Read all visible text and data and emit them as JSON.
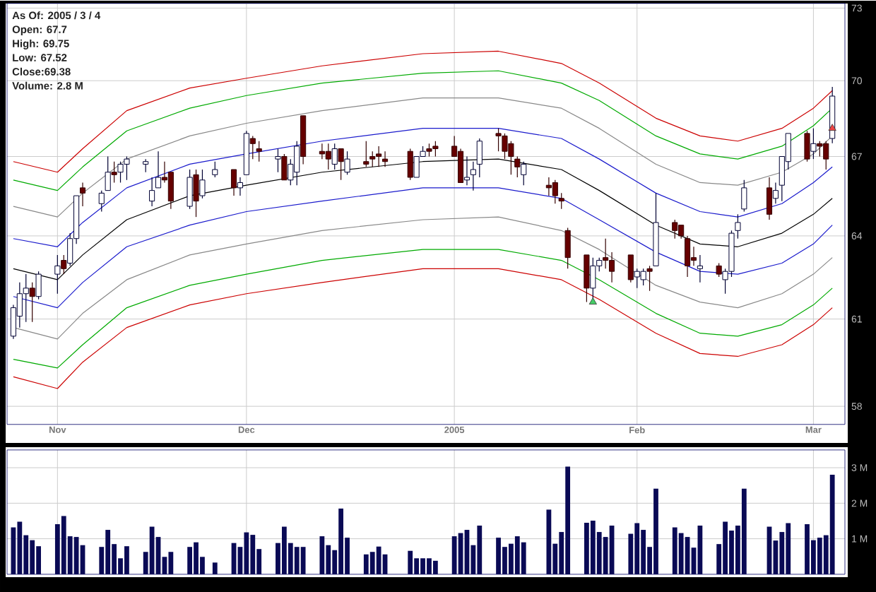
{
  "chart_data": [
    {
      "type": "candlestick",
      "annotations": [
        "As Of: 2005 / 3 / 4",
        "Open: 67.7",
        "High: 69.75",
        "Low: 67.52",
        "Close:69.38",
        "Volume: 2.8 M"
      ],
      "x": [
        "2004-10-25",
        "2004-10-26",
        "2004-10-27",
        "2004-10-28",
        "2004-10-29",
        "2004-11-01",
        "2004-11-02",
        "2004-11-03",
        "2004-11-04",
        "2004-11-05",
        "2004-11-08",
        "2004-11-09",
        "2004-11-10",
        "2004-11-11",
        "2004-11-12",
        "2004-11-15",
        "2004-11-16",
        "2004-11-17",
        "2004-11-18",
        "2004-11-19",
        "2004-11-22",
        "2004-11-23",
        "2004-11-24",
        "2004-11-26",
        "2004-11-29",
        "2004-11-30",
        "2004-12-01",
        "2004-12-02",
        "2004-12-03",
        "2004-12-06",
        "2004-12-07",
        "2004-12-08",
        "2004-12-09",
        "2004-12-10",
        "2004-12-13",
        "2004-12-14",
        "2004-12-15",
        "2004-12-16",
        "2004-12-17",
        "2004-12-20",
        "2004-12-21",
        "2004-12-22",
        "2004-12-23",
        "2004-12-27",
        "2004-12-28",
        "2004-12-29",
        "2004-12-30",
        "2004-12-31",
        "2005-01-03",
        "2005-01-04",
        "2005-01-05",
        "2005-01-06",
        "2005-01-07",
        "2005-01-10",
        "2005-01-11",
        "2005-01-12",
        "2005-01-13",
        "2005-01-14",
        "2005-01-18",
        "2005-01-19",
        "2005-01-20",
        "2005-01-21",
        "2005-01-24",
        "2005-01-25",
        "2005-01-26",
        "2005-01-27",
        "2005-01-28",
        "2005-01-31",
        "2005-02-01",
        "2005-02-02",
        "2005-02-03",
        "2005-02-04",
        "2005-02-07",
        "2005-02-08",
        "2005-02-09",
        "2005-02-10",
        "2005-02-11",
        "2005-02-14",
        "2005-02-15",
        "2005-02-16",
        "2005-02-17",
        "2005-02-18",
        "2005-02-22",
        "2005-02-23",
        "2005-02-24",
        "2005-02-25",
        "2005-02-28",
        "2005-03-01",
        "2005-03-02",
        "2005-03-03",
        "2005-03-04"
      ],
      "ohlc": [
        [
          60.4,
          61.5,
          60.3,
          61.4
        ],
        [
          61.1,
          62.3,
          60.7,
          61.9
        ],
        [
          61.9,
          62.6,
          60.9,
          62.1
        ],
        [
          62.1,
          62.3,
          60.9,
          61.8
        ],
        [
          61.8,
          62.7,
          61.7,
          62.6
        ],
        [
          62.6,
          63.3,
          61.9,
          62.9
        ],
        [
          63.1,
          63.3,
          62.6,
          62.8
        ],
        [
          63.0,
          64.1,
          62.9,
          63.9
        ],
        [
          63.9,
          65.5,
          63.7,
          65.5
        ],
        [
          65.8,
          66.0,
          65.1,
          65.6
        ],
        [
          65.2,
          65.7,
          64.9,
          65.6
        ],
        [
          65.7,
          67.0,
          65.7,
          66.4
        ],
        [
          66.4,
          66.8,
          66.0,
          66.3
        ],
        [
          66.4,
          66.8,
          66.0,
          66.7
        ],
        [
          66.7,
          67.0,
          66.1,
          66.9
        ],
        [
          66.7,
          66.9,
          66.4,
          66.8
        ],
        [
          65.3,
          66.2,
          65.1,
          65.7
        ],
        [
          65.8,
          67.2,
          65.8,
          66.2
        ],
        [
          66.2,
          66.8,
          66.0,
          66.1
        ],
        [
          66.4,
          66.4,
          65.0,
          65.3
        ],
        [
          65.1,
          66.5,
          65.0,
          66.2
        ],
        [
          66.3,
          66.5,
          64.7,
          65.3
        ],
        [
          65.5,
          66.5,
          65.4,
          66.1
        ],
        [
          66.3,
          66.8,
          66.2,
          66.5
        ],
        [
          66.5,
          66.5,
          65.5,
          65.8
        ],
        [
          65.8,
          66.2,
          65.5,
          66.0
        ],
        [
          66.3,
          68.0,
          66.3,
          67.9
        ],
        [
          67.7,
          67.8,
          66.9,
          67.5
        ],
        [
          67.3,
          67.6,
          66.8,
          67.2
        ],
        [
          66.9,
          67.3,
          66.4,
          67.0
        ],
        [
          67.0,
          67.1,
          66.1,
          66.1
        ],
        [
          66.1,
          66.9,
          65.9,
          66.7
        ],
        [
          66.4,
          67.6,
          65.9,
          67.4
        ],
        [
          68.6,
          68.6,
          66.7,
          67.0
        ],
        [
          67.2,
          67.5,
          66.9,
          67.1
        ],
        [
          67.2,
          67.5,
          66.5,
          66.9
        ],
        [
          66.7,
          67.5,
          66.5,
          67.3
        ],
        [
          67.3,
          67.3,
          66.1,
          66.8
        ],
        [
          66.4,
          67.2,
          66.3,
          66.9
        ],
        [
          66.8,
          67.6,
          66.6,
          66.7
        ],
        [
          67.0,
          67.2,
          66.6,
          66.9
        ],
        [
          67.1,
          67.4,
          66.6,
          67.0
        ],
        [
          66.9,
          67.2,
          66.6,
          66.8
        ],
        [
          67.2,
          67.3,
          66.1,
          66.2
        ],
        [
          66.2,
          67.0,
          66.2,
          67.0
        ],
        [
          67.0,
          67.4,
          67.0,
          67.2
        ],
        [
          67.3,
          67.5,
          67.0,
          67.2
        ],
        [
          67.4,
          67.6,
          67.0,
          67.3
        ],
        [
          67.4,
          67.8,
          67.0,
          67.0
        ],
        [
          67.2,
          67.3,
          66.0,
          66.0
        ],
        [
          66.1,
          67.0,
          65.9,
          66.2
        ],
        [
          66.3,
          66.8,
          65.7,
          66.5
        ],
        [
          66.7,
          67.7,
          66.2,
          67.6
        ],
        [
          67.9,
          68.1,
          67.2,
          67.8
        ],
        [
          67.8,
          67.9,
          66.9,
          67.2
        ],
        [
          67.5,
          67.6,
          66.3,
          67.0
        ],
        [
          66.9,
          67.0,
          66.2,
          66.6
        ],
        [
          66.3,
          66.8,
          65.9,
          66.7
        ],
        [
          65.9,
          66.2,
          65.5,
          65.8
        ],
        [
          66.0,
          66.1,
          65.2,
          65.5
        ],
        [
          65.4,
          65.6,
          65.0,
          65.3
        ],
        [
          64.2,
          64.3,
          62.8,
          63.2
        ],
        [
          63.3,
          63.3,
          61.6,
          62.1
        ],
        [
          62.1,
          63.2,
          61.7,
          62.9
        ],
        [
          62.9,
          63.2,
          62.7,
          63.1
        ],
        [
          63.2,
          63.9,
          62.8,
          63.1
        ],
        [
          63.1,
          63.4,
          62.3,
          62.7
        ],
        [
          63.3,
          63.3,
          62.3,
          62.4
        ],
        [
          62.5,
          62.8,
          62.1,
          62.7
        ],
        [
          62.4,
          62.8,
          62.2,
          62.7
        ],
        [
          62.8,
          62.9,
          62.0,
          62.7
        ],
        [
          62.9,
          65.6,
          62.9,
          64.5
        ],
        [
          64.5,
          64.6,
          63.9,
          64.2
        ],
        [
          64.4,
          64.4,
          63.9,
          64.0
        ],
        [
          63.9,
          64.0,
          62.5,
          62.9
        ],
        [
          63.2,
          63.6,
          62.9,
          63.1
        ],
        [
          62.8,
          63.3,
          62.3,
          62.9
        ],
        [
          62.9,
          63.0,
          62.5,
          62.6
        ],
        [
          62.4,
          62.8,
          61.9,
          62.7
        ],
        [
          62.7,
          64.2,
          62.5,
          64.1
        ],
        [
          64.2,
          64.8,
          63.9,
          64.5
        ],
        [
          65.0,
          66.1,
          64.9,
          65.8
        ],
        [
          65.8,
          66.2,
          64.6,
          64.8
        ],
        [
          65.4,
          66.0,
          65.2,
          65.7
        ],
        [
          65.9,
          67.0,
          65.3,
          67.0
        ],
        [
          66.8,
          67.9,
          66.5,
          67.9
        ],
        [
          67.9,
          68.0,
          66.8,
          66.9
        ],
        [
          67.2,
          68.1,
          66.9,
          67.5
        ],
        [
          67.5,
          67.6,
          67.0,
          67.4
        ],
        [
          67.5,
          67.6,
          66.5,
          66.9
        ],
        [
          67.7,
          69.75,
          67.52,
          69.38
        ]
      ],
      "series": [
        {
          "type": "line",
          "color": "#cc0000",
          "x": [
            "2004-10-25",
            "2004-11-01",
            "2004-11-05",
            "2004-11-12",
            "2004-11-22",
            "2004-12-01",
            "2004-12-13",
            "2004-12-29",
            "2005-01-10",
            "2005-01-20",
            "2005-01-26",
            "2005-02-04",
            "2005-02-11",
            "2005-02-17",
            "2005-02-24",
            "2005-03-01",
            "2005-03-04"
          ],
          "values": [
            66.8,
            66.4,
            67.3,
            68.8,
            69.7,
            70.1,
            70.6,
            71.1,
            71.2,
            70.7,
            69.9,
            68.5,
            67.8,
            67.6,
            68.1,
            68.9,
            69.6
          ]
        },
        {
          "type": "line",
          "color": "#00aa00",
          "x": [
            "2004-10-25",
            "2004-11-01",
            "2004-11-05",
            "2004-11-12",
            "2004-11-22",
            "2004-12-01",
            "2004-12-13",
            "2004-12-29",
            "2005-01-10",
            "2005-01-20",
            "2005-01-26",
            "2005-02-04",
            "2005-02-11",
            "2005-02-17",
            "2005-02-24",
            "2005-03-01",
            "2005-03-04"
          ],
          "values": [
            66.1,
            65.7,
            66.6,
            68.0,
            68.9,
            69.4,
            69.9,
            70.3,
            70.4,
            69.9,
            69.2,
            67.8,
            67.1,
            66.9,
            67.4,
            68.2,
            68.9
          ]
        },
        {
          "type": "line",
          "color": "#888888",
          "x": [
            "2004-10-25",
            "2004-11-01",
            "2004-11-05",
            "2004-11-12",
            "2004-11-22",
            "2004-12-01",
            "2004-12-13",
            "2004-12-29",
            "2005-01-10",
            "2005-01-20",
            "2005-01-26",
            "2005-02-04",
            "2005-02-11",
            "2005-02-17",
            "2005-02-24",
            "2005-03-01",
            "2005-03-04"
          ],
          "values": [
            65.1,
            64.7,
            65.6,
            66.9,
            67.8,
            68.3,
            68.8,
            69.3,
            69.3,
            68.9,
            68.1,
            66.7,
            66.0,
            65.9,
            66.4,
            67.1,
            67.8
          ]
        },
        {
          "type": "line",
          "color": "#1a1acc",
          "x": [
            "2004-10-25",
            "2004-11-01",
            "2004-11-05",
            "2004-11-12",
            "2004-11-22",
            "2004-12-01",
            "2004-12-13",
            "2004-12-29",
            "2005-01-10",
            "2005-01-20",
            "2005-01-26",
            "2005-02-04",
            "2005-02-11",
            "2005-02-17",
            "2005-02-24",
            "2005-03-01",
            "2005-03-04"
          ],
          "values": [
            63.9,
            63.6,
            64.5,
            65.8,
            66.7,
            67.1,
            67.6,
            68.1,
            68.1,
            67.7,
            66.9,
            65.6,
            64.9,
            64.7,
            65.2,
            66.0,
            66.6
          ]
        },
        {
          "type": "line",
          "color": "#000000",
          "x": [
            "2004-10-25",
            "2004-11-01",
            "2004-11-05",
            "2004-11-12",
            "2004-11-22",
            "2004-12-01",
            "2004-12-13",
            "2004-12-29",
            "2005-01-10",
            "2005-01-20",
            "2005-01-26",
            "2005-02-04",
            "2005-02-11",
            "2005-02-17",
            "2005-02-24",
            "2005-03-01",
            "2005-03-04"
          ],
          "values": [
            62.8,
            62.4,
            63.3,
            64.6,
            65.5,
            65.9,
            66.4,
            66.8,
            66.9,
            66.5,
            65.7,
            64.4,
            63.7,
            63.6,
            64.1,
            64.8,
            65.4
          ]
        },
        {
          "type": "line",
          "color": "#1a1acc",
          "x": [
            "2004-10-25",
            "2004-11-01",
            "2004-11-05",
            "2004-11-12",
            "2004-11-22",
            "2004-12-01",
            "2004-12-13",
            "2004-12-29",
            "2005-01-10",
            "2005-01-20",
            "2005-01-26",
            "2005-02-04",
            "2005-02-11",
            "2005-02-17",
            "2005-02-24",
            "2005-03-01",
            "2005-03-04"
          ],
          "values": [
            61.8,
            61.4,
            62.3,
            63.6,
            64.4,
            64.9,
            65.3,
            65.8,
            65.8,
            65.4,
            64.6,
            63.4,
            62.7,
            62.6,
            63.0,
            63.7,
            64.4
          ]
        },
        {
          "type": "line",
          "color": "#888888",
          "x": [
            "2004-10-25",
            "2004-11-01",
            "2004-11-05",
            "2004-11-12",
            "2004-11-22",
            "2004-12-01",
            "2004-12-13",
            "2004-12-29",
            "2005-01-10",
            "2005-01-20",
            "2005-01-26",
            "2005-02-04",
            "2005-02-11",
            "2005-02-17",
            "2005-02-24",
            "2005-03-01",
            "2005-03-04"
          ],
          "values": [
            60.7,
            60.3,
            61.2,
            62.4,
            63.3,
            63.7,
            64.2,
            64.6,
            64.7,
            64.2,
            63.5,
            62.2,
            61.6,
            61.4,
            61.9,
            62.6,
            63.2
          ]
        },
        {
          "type": "line",
          "color": "#00aa00",
          "x": [
            "2004-10-25",
            "2004-11-01",
            "2004-11-05",
            "2004-11-12",
            "2004-11-22",
            "2004-12-01",
            "2004-12-13",
            "2004-12-29",
            "2005-01-10",
            "2005-01-20",
            "2005-01-26",
            "2005-02-04",
            "2005-02-11",
            "2005-02-17",
            "2005-02-24",
            "2005-03-01",
            "2005-03-04"
          ],
          "values": [
            59.6,
            59.3,
            60.1,
            61.4,
            62.2,
            62.6,
            63.1,
            63.5,
            63.5,
            63.1,
            62.4,
            61.2,
            60.5,
            60.4,
            60.8,
            61.5,
            62.1
          ]
        },
        {
          "type": "line",
          "color": "#cc0000",
          "x": [
            "2004-10-25",
            "2004-11-01",
            "2004-11-05",
            "2004-11-12",
            "2004-11-22",
            "2004-12-01",
            "2004-12-13",
            "2004-12-29",
            "2005-01-10",
            "2005-01-20",
            "2005-01-26",
            "2005-02-04",
            "2005-02-11",
            "2005-02-17",
            "2005-02-24",
            "2005-03-01",
            "2005-03-04"
          ],
          "values": [
            59.0,
            58.6,
            59.5,
            60.7,
            61.5,
            61.9,
            62.3,
            62.8,
            62.8,
            62.4,
            61.7,
            60.5,
            59.8,
            59.7,
            60.1,
            60.8,
            61.4
          ]
        },
        {
          "type": "scatter",
          "color": "#44cc66",
          "marker": "triangle",
          "x": [
            "2005-01-25"
          ],
          "values": [
            61.6
          ]
        },
        {
          "type": "scatter",
          "color": "#ee4444",
          "marker": "triangle",
          "x": [
            "2005-03-04"
          ],
          "values": [
            68.1
          ]
        }
      ],
      "xlim": [
        "2004-10-24",
        "2005-03-06"
      ],
      "xticks": [
        {
          "value": "2004-11-01",
          "label": "Nov"
        },
        {
          "value": "2004-12-01",
          "label": "Dec"
        },
        {
          "value": "2005-01-03",
          "label": "2005"
        },
        {
          "value": "2005-02-01",
          "label": "Feb"
        },
        {
          "value": "2005-03-01",
          "label": "Mar"
        }
      ],
      "ylim": [
        57.4,
        73.2
      ],
      "yticks": [
        58,
        61,
        64,
        67,
        70,
        73
      ],
      "log": "y",
      "grid": true
    },
    {
      "type": "bar",
      "color": "#0a0a55",
      "x": [
        "2004-10-25",
        "2004-10-26",
        "2004-10-27",
        "2004-10-28",
        "2004-10-29",
        "2004-11-01",
        "2004-11-02",
        "2004-11-03",
        "2004-11-04",
        "2004-11-05",
        "2004-11-08",
        "2004-11-09",
        "2004-11-10",
        "2004-11-11",
        "2004-11-12",
        "2004-11-15",
        "2004-11-16",
        "2004-11-17",
        "2004-11-18",
        "2004-11-19",
        "2004-11-22",
        "2004-11-23",
        "2004-11-24",
        "2004-11-26",
        "2004-11-29",
        "2004-11-30",
        "2004-12-01",
        "2004-12-02",
        "2004-12-03",
        "2004-12-06",
        "2004-12-07",
        "2004-12-08",
        "2004-12-09",
        "2004-12-10",
        "2004-12-13",
        "2004-12-14",
        "2004-12-15",
        "2004-12-16",
        "2004-12-17",
        "2004-12-20",
        "2004-12-21",
        "2004-12-22",
        "2004-12-23",
        "2004-12-27",
        "2004-12-28",
        "2004-12-29",
        "2004-12-30",
        "2004-12-31",
        "2005-01-03",
        "2005-01-04",
        "2005-01-05",
        "2005-01-06",
        "2005-01-07",
        "2005-01-10",
        "2005-01-11",
        "2005-01-12",
        "2005-01-13",
        "2005-01-14",
        "2005-01-18",
        "2005-01-19",
        "2005-01-20",
        "2005-01-21",
        "2005-01-24",
        "2005-01-25",
        "2005-01-26",
        "2005-01-27",
        "2005-01-28",
        "2005-01-31",
        "2005-02-01",
        "2005-02-02",
        "2005-02-03",
        "2005-02-04",
        "2005-02-07",
        "2005-02-08",
        "2005-02-09",
        "2005-02-10",
        "2005-02-11",
        "2005-02-14",
        "2005-02-15",
        "2005-02-16",
        "2005-02-17",
        "2005-02-18",
        "2005-02-22",
        "2005-02-23",
        "2005-02-24",
        "2005-02-25",
        "2005-02-28",
        "2005-03-01",
        "2005-03-02",
        "2005-03-03",
        "2005-03-04"
      ],
      "values": [
        1.32,
        1.48,
        1.1,
        0.96,
        0.79,
        1.41,
        1.64,
        1.07,
        1.05,
        0.82,
        0.77,
        1.25,
        0.85,
        0.45,
        0.79,
        0.63,
        1.34,
        1.05,
        0.49,
        0.63,
        0.77,
        0.9,
        0.49,
        0.33,
        0.88,
        0.77,
        1.18,
        1.11,
        0.71,
        0.88,
        1.34,
        0.88,
        0.77,
        0.77,
        1.07,
        0.82,
        0.68,
        1.85,
        1.03,
        0.56,
        0.63,
        0.78,
        0.56,
        0.66,
        0.45,
        0.45,
        0.45,
        0.38,
        1.07,
        1.16,
        1.25,
        0.82,
        1.37,
        1.03,
        0.77,
        0.86,
        1.07,
        0.9,
        1.82,
        0.86,
        1.19,
        3.03,
        1.45,
        1.51,
        1.19,
        1.05,
        1.37,
        1.14,
        1.44,
        1.25,
        0.77,
        2.41,
        1.32,
        1.16,
        1.05,
        0.75,
        1.37,
        0.85,
        1.48,
        1.23,
        1.37,
        2.41,
        1.34,
        0.95,
        1.19,
        1.44,
        1.41,
        0.96,
        1.03,
        1.1,
        2.8
      ],
      "xlim": [
        "2004-10-24",
        "2005-03-06"
      ],
      "xticks": [
        {
          "value": "2004-11-01",
          "label": null
        },
        {
          "value": "2004-12-01",
          "label": null
        },
        {
          "value": "2005-01-03",
          "label": null
        },
        {
          "value": "2005-02-01",
          "label": null
        },
        {
          "value": "2005-03-01",
          "label": null
        }
      ],
      "ylim": [
        0,
        3.5
      ],
      "yticks": [
        {
          "value": 1,
          "label": "1 M"
        },
        {
          "value": 2,
          "label": "2 M"
        },
        {
          "value": 3,
          "label": "3 M"
        }
      ],
      "grid": true,
      "tick_labels": "y"
    }
  ]
}
